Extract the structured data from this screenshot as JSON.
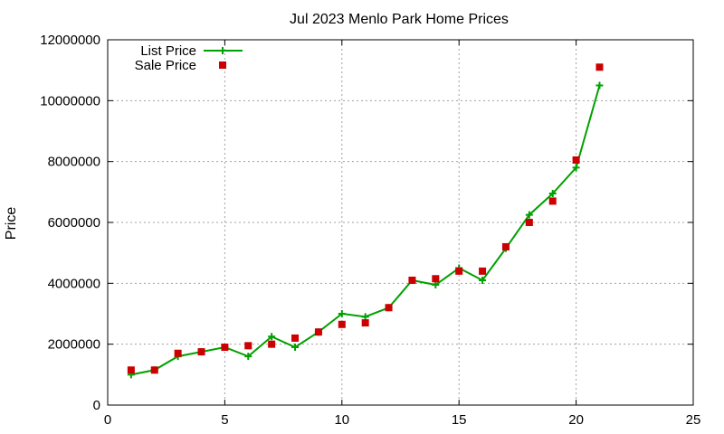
{
  "chart_data": {
    "type": "line",
    "title": "Jul 2023 Menlo Park Home Prices",
    "xlabel": "",
    "ylabel": "Price",
    "xlim": [
      0,
      25
    ],
    "ylim": [
      0,
      12000000
    ],
    "x_ticks": [
      0,
      5,
      10,
      15,
      20,
      25
    ],
    "y_ticks": [
      0,
      2000000,
      4000000,
      6000000,
      8000000,
      10000000,
      12000000
    ],
    "grid": true,
    "legend_position": "top-left",
    "series": [
      {
        "name": "List Price",
        "style": "line-plus",
        "color": "#00a000",
        "x": [
          1,
          2,
          3,
          4,
          5,
          6,
          7,
          8,
          9,
          10,
          11,
          12,
          13,
          14,
          15,
          16,
          17,
          18,
          19,
          20,
          21
        ],
        "y": [
          1000000,
          1150000,
          1600000,
          1750000,
          1900000,
          1600000,
          2250000,
          1900000,
          2400000,
          3000000,
          2900000,
          3200000,
          4100000,
          3950000,
          4500000,
          4100000,
          5150000,
          6250000,
          6950000,
          7800000,
          10500000
        ]
      },
      {
        "name": "Sale Price",
        "style": "square-marker",
        "color": "#cc0000",
        "x": [
          1,
          2,
          3,
          4,
          5,
          6,
          7,
          8,
          9,
          10,
          11,
          12,
          13,
          14,
          15,
          16,
          17,
          18,
          19,
          20,
          21
        ],
        "y": [
          1150000,
          1150000,
          1700000,
          1750000,
          1900000,
          1950000,
          2000000,
          2200000,
          2400000,
          2650000,
          2700000,
          3200000,
          4100000,
          4150000,
          4400000,
          4400000,
          5200000,
          6000000,
          6700000,
          8050000,
          11100000
        ]
      }
    ]
  }
}
